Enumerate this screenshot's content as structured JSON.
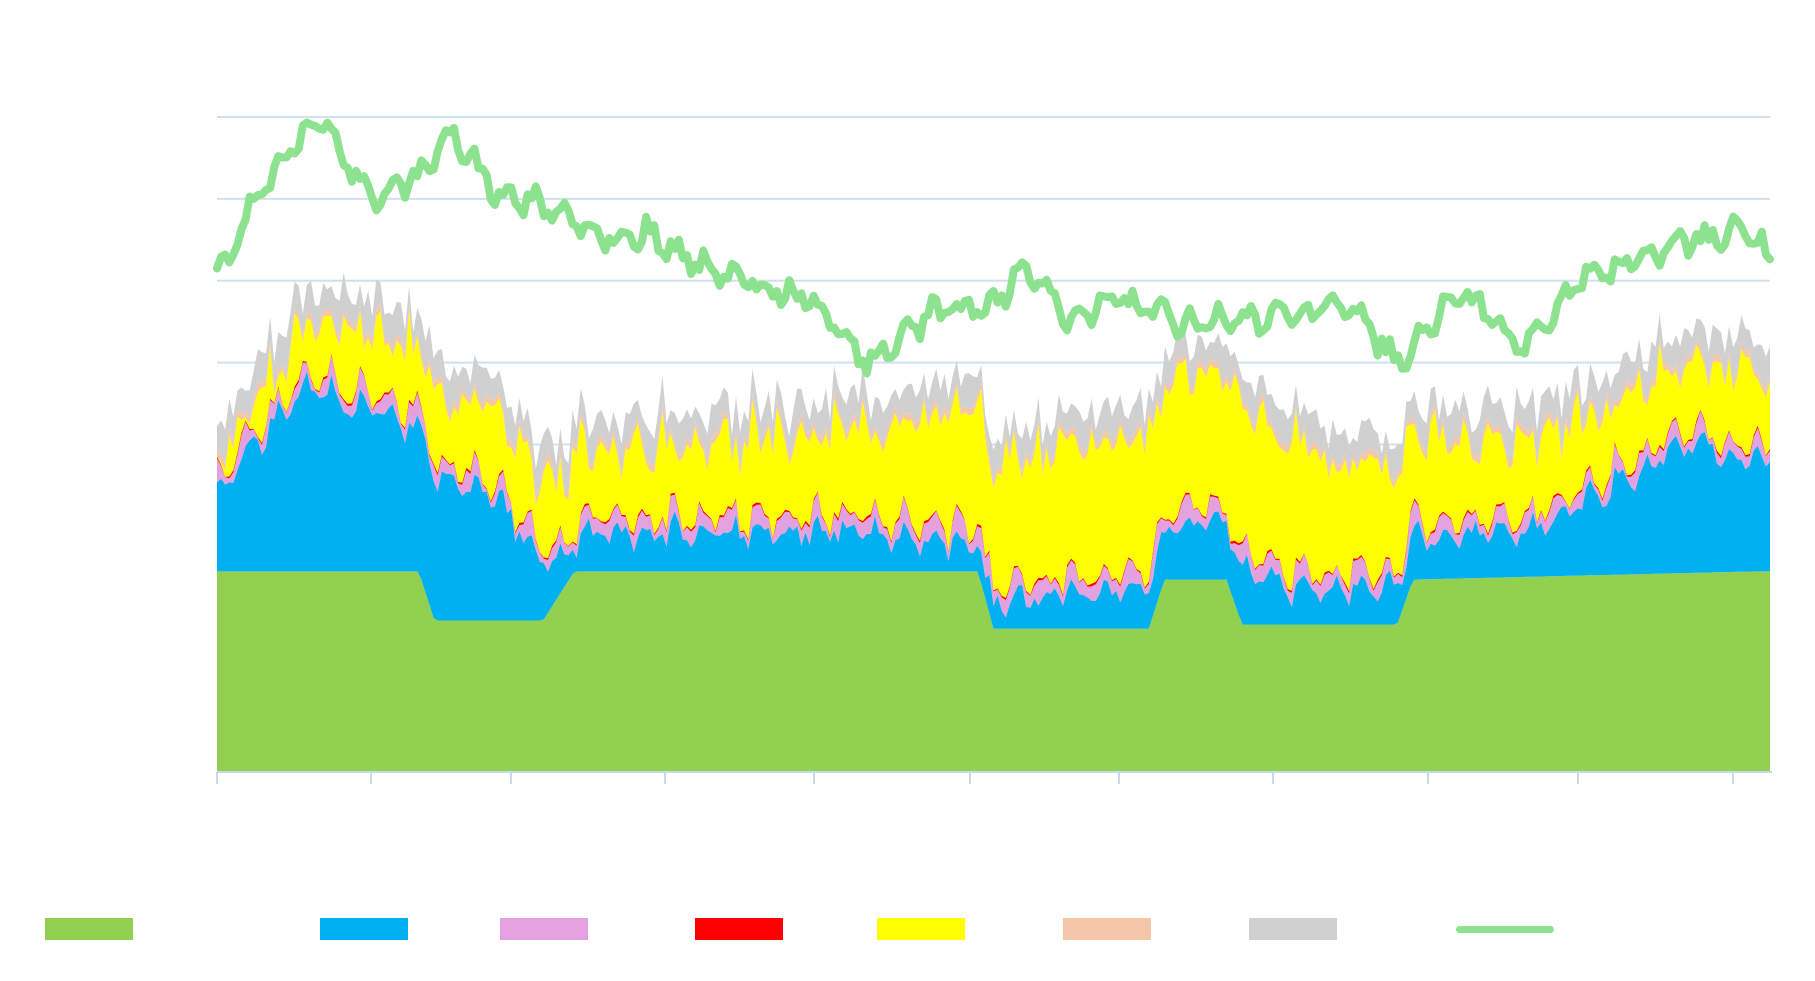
{
  "chart_data": {
    "type": "area",
    "title": "",
    "xlabel": "",
    "ylabel": "",
    "ylim": [
      0,
      8
    ],
    "grid": true,
    "legend_position": "bottom",
    "grid_color": "#cfe0ee",
    "axis_color": "#c6d9ea",
    "x_tick_count": 11,
    "series": [
      {
        "name": "",
        "color": "#92d050",
        "kind": "stacked-area",
        "keypoints": [
          [
            0,
            2.45
          ],
          [
            0.13,
            2.45
          ],
          [
            0.14,
            1.85
          ],
          [
            0.21,
            1.85
          ],
          [
            0.23,
            2.45
          ],
          [
            0.49,
            2.45
          ],
          [
            0.5,
            1.75
          ],
          [
            0.6,
            1.75
          ],
          [
            0.61,
            2.35
          ],
          [
            0.65,
            2.35
          ],
          [
            0.66,
            1.8
          ],
          [
            0.76,
            1.8
          ],
          [
            0.77,
            2.35
          ],
          [
            0.99,
            2.45
          ],
          [
            1.0,
            2.45
          ]
        ]
      },
      {
        "name": "",
        "color": "#00b0f0",
        "kind": "stacked-area",
        "keypoints": [
          [
            0,
            1.0
          ],
          [
            0.06,
            2.3
          ],
          [
            0.12,
            1.8
          ],
          [
            0.18,
            1.5
          ],
          [
            0.22,
            0.4
          ],
          [
            0.3,
            0.5
          ],
          [
            0.4,
            0.5
          ],
          [
            0.5,
            0.3
          ],
          [
            0.58,
            0.5
          ],
          [
            0.65,
            0.7
          ],
          [
            0.7,
            0.4
          ],
          [
            0.77,
            0.5
          ],
          [
            0.85,
            0.6
          ],
          [
            0.9,
            1.1
          ],
          [
            0.95,
            1.6
          ],
          [
            1.0,
            1.3
          ]
        ]
      },
      {
        "name": "",
        "color": "#e3a1e0",
        "kind": "stacked-area",
        "keypoints": [
          [
            0,
            0.15
          ],
          [
            0.5,
            0.2
          ],
          [
            1.0,
            0.15
          ]
        ]
      },
      {
        "name": "",
        "color": "#ff0000",
        "kind": "stacked-area",
        "keypoints": [
          [
            0,
            0.02
          ],
          [
            1.0,
            0.02
          ]
        ]
      },
      {
        "name": "",
        "color": "#ffff00",
        "kind": "stacked-area",
        "keypoints": [
          [
            0,
            0.2
          ],
          [
            0.08,
            0.7
          ],
          [
            0.2,
            0.8
          ],
          [
            0.3,
            0.9
          ],
          [
            0.4,
            1.0
          ],
          [
            0.5,
            1.5
          ],
          [
            0.55,
            1.6
          ],
          [
            0.6,
            1.6
          ],
          [
            0.66,
            1.7
          ],
          [
            0.7,
            1.5
          ],
          [
            0.8,
            1.0
          ],
          [
            0.9,
            0.8
          ],
          [
            1.0,
            0.9
          ]
        ]
      },
      {
        "name": "",
        "color": "#f4c7a8",
        "kind": "stacked-area",
        "keypoints": [
          [
            0,
            0.08
          ],
          [
            1.0,
            0.08
          ]
        ]
      },
      {
        "name": "",
        "color": "#d0d0d0",
        "kind": "stacked-area",
        "keypoints": [
          [
            0,
            0.35
          ],
          [
            0.5,
            0.3
          ],
          [
            1.0,
            0.35
          ]
        ]
      },
      {
        "name": "",
        "color": "#8ce28f",
        "kind": "line",
        "keypoints": [
          [
            0,
            6.0
          ],
          [
            0.02,
            6.8
          ],
          [
            0.05,
            7.7
          ],
          [
            0.07,
            7.9
          ],
          [
            0.1,
            7.0
          ],
          [
            0.13,
            7.3
          ],
          [
            0.15,
            7.8
          ],
          [
            0.18,
            7.1
          ],
          [
            0.21,
            6.9
          ],
          [
            0.25,
            6.5
          ],
          [
            0.28,
            6.6
          ],
          [
            0.3,
            6.3
          ],
          [
            0.34,
            6.0
          ],
          [
            0.38,
            5.8
          ],
          [
            0.42,
            5.0
          ],
          [
            0.46,
            5.6
          ],
          [
            0.5,
            5.7
          ],
          [
            0.52,
            6.2
          ],
          [
            0.55,
            5.5
          ],
          [
            0.58,
            5.8
          ],
          [
            0.62,
            5.5
          ],
          [
            0.65,
            5.5
          ],
          [
            0.7,
            5.6
          ],
          [
            0.73,
            5.7
          ],
          [
            0.76,
            5.0
          ],
          [
            0.8,
            5.9
          ],
          [
            0.84,
            5.2
          ],
          [
            0.88,
            6.0
          ],
          [
            0.92,
            6.3
          ],
          [
            0.95,
            6.5
          ],
          [
            0.98,
            6.6
          ],
          [
            1.0,
            6.3
          ]
        ]
      }
    ]
  },
  "legend": [
    {
      "name": "",
      "color": "#92d050",
      "kind": "swatch"
    },
    {
      "name": "",
      "color": "#00b0f0",
      "kind": "swatch"
    },
    {
      "name": "",
      "color": "#e3a1e0",
      "kind": "swatch"
    },
    {
      "name": "",
      "color": "#ff0000",
      "kind": "swatch"
    },
    {
      "name": "",
      "color": "#ffff00",
      "kind": "swatch"
    },
    {
      "name": "",
      "color": "#f4c7a8",
      "kind": "swatch"
    },
    {
      "name": "",
      "color": "#d0d0d0",
      "kind": "swatch"
    },
    {
      "name": "",
      "color": "#8ce28f",
      "kind": "line"
    }
  ]
}
